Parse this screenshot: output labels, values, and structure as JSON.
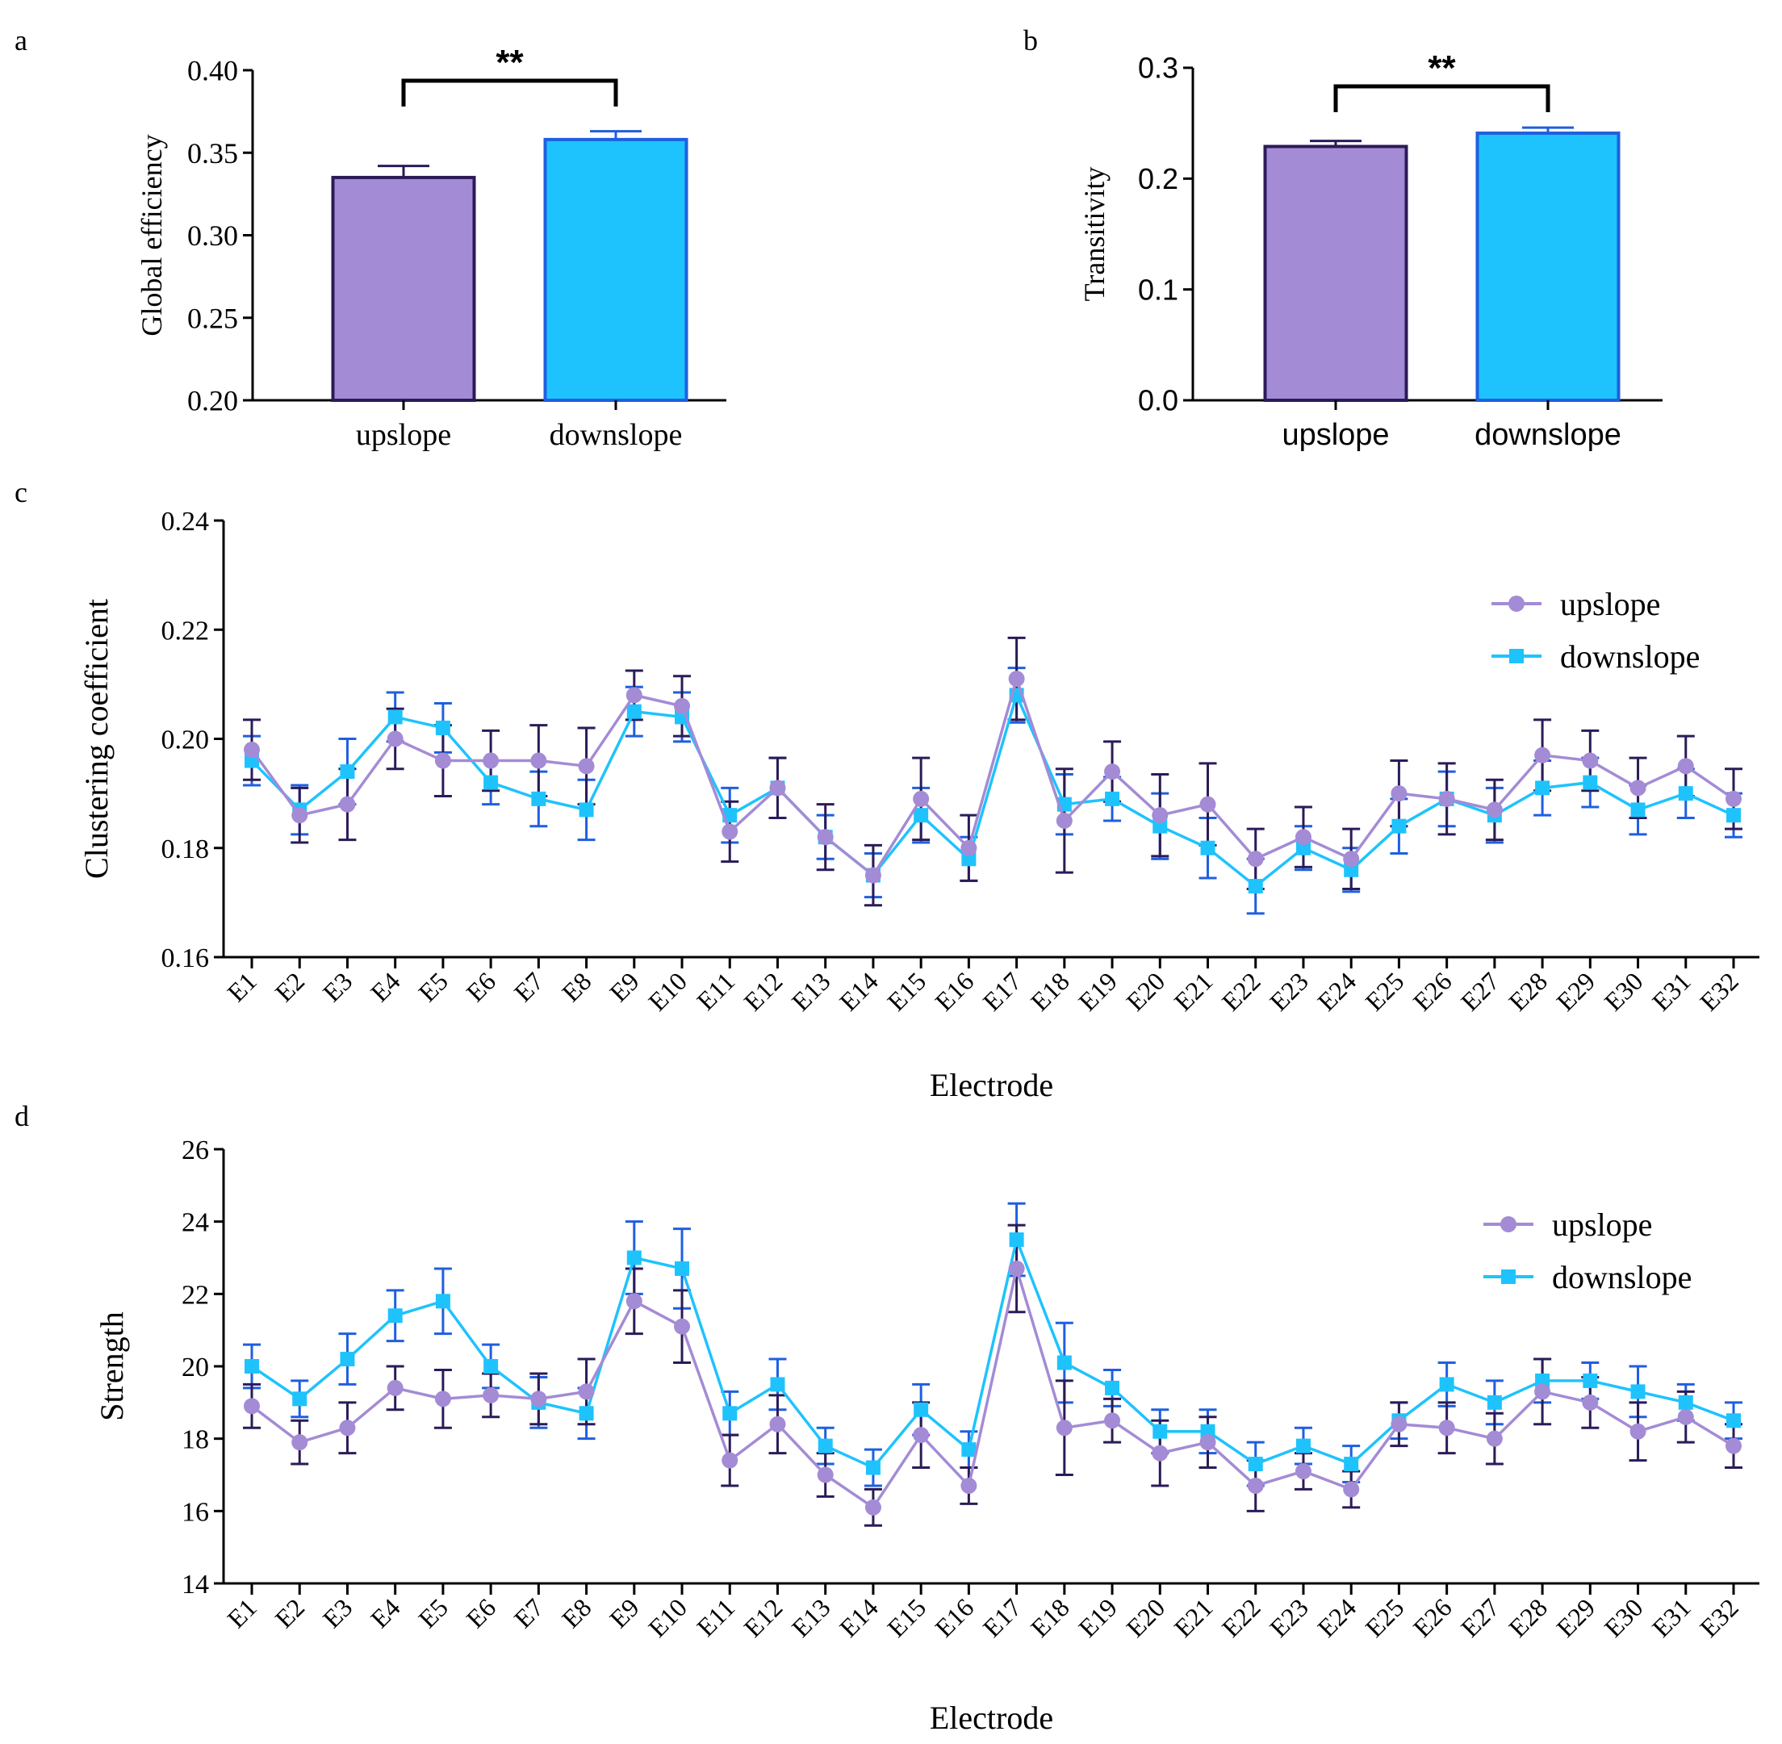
{
  "colors": {
    "upslope_fill": "#A48BD5",
    "upslope_edge": "#2B1B57",
    "downslope_fill": "#1EC3FD",
    "downslope_edge": "#1F5FE0",
    "axis": "#000000"
  },
  "chart_data": [
    {
      "panel": "a",
      "type": "bar",
      "title": "",
      "categories": [
        "upslope",
        "downslope"
      ],
      "values": [
        0.335,
        0.358
      ],
      "errors": [
        0.007,
        0.005
      ],
      "xlabel": "",
      "ylabel": "Global efficiency",
      "ylim": [
        0.2,
        0.4
      ],
      "yticks": [
        "0.20",
        "0.25",
        "0.30",
        "0.35",
        "0.40"
      ],
      "ytick_values": [
        0.2,
        0.25,
        0.3,
        0.35,
        0.4
      ],
      "significance": "**"
    },
    {
      "panel": "b",
      "type": "bar",
      "title": "",
      "categories": [
        "upslope",
        "downslope"
      ],
      "values": [
        0.229,
        0.241
      ],
      "errors": [
        0.005,
        0.005
      ],
      "xlabel": "",
      "ylabel": "Transitivity",
      "ylim": [
        0.0,
        0.3
      ],
      "yticks": [
        "0.0",
        "0.1",
        "0.2",
        "0.3"
      ],
      "ytick_values": [
        0.0,
        0.1,
        0.2,
        0.3
      ],
      "significance": "**"
    },
    {
      "panel": "c",
      "type": "line",
      "title": "",
      "xlabel": "Electrode",
      "ylabel": "Clustering coefficient",
      "ylim": [
        0.16,
        0.24
      ],
      "yticks": [
        "0.16",
        "0.18",
        "0.20",
        "0.22",
        "0.24"
      ],
      "ytick_values": [
        0.16,
        0.18,
        0.2,
        0.22,
        0.24
      ],
      "legend_position": "top-right",
      "categories": [
        "E1",
        "E2",
        "E3",
        "E4",
        "E5",
        "E6",
        "E7",
        "E8",
        "E9",
        "E10",
        "E11",
        "E12",
        "E13",
        "E14",
        "E15",
        "E16",
        "E17",
        "E18",
        "E19",
        "E20",
        "E21",
        "E22",
        "E23",
        "E24",
        "E25",
        "E26",
        "E27",
        "E28",
        "E29",
        "E30",
        "E31",
        "E32"
      ],
      "series": [
        {
          "name": "upslope",
          "values": [
            0.198,
            0.186,
            0.188,
            0.2,
            0.196,
            0.196,
            0.196,
            0.195,
            0.208,
            0.206,
            0.183,
            0.191,
            0.182,
            0.175,
            0.189,
            0.18,
            0.211,
            0.185,
            0.194,
            0.186,
            0.188,
            0.178,
            0.182,
            0.178,
            0.19,
            0.189,
            0.187,
            0.197,
            0.196,
            0.191,
            0.195,
            0.189
          ],
          "errors": [
            0.0055,
            0.005,
            0.0065,
            0.0055,
            0.0065,
            0.0055,
            0.0065,
            0.007,
            0.0045,
            0.0055,
            0.0055,
            0.0055,
            0.006,
            0.0055,
            0.0075,
            0.006,
            0.0075,
            0.0095,
            0.0055,
            0.0075,
            0.0075,
            0.0055,
            0.0055,
            0.0055,
            0.006,
            0.0065,
            0.0055,
            0.0065,
            0.0055,
            0.0055,
            0.0055,
            0.0055
          ]
        },
        {
          "name": "downslope",
          "values": [
            0.196,
            0.187,
            0.194,
            0.204,
            0.202,
            0.192,
            0.189,
            0.187,
            0.205,
            0.204,
            0.186,
            0.191,
            0.182,
            0.175,
            0.186,
            0.178,
            0.208,
            0.188,
            0.189,
            0.184,
            0.18,
            0.173,
            0.18,
            0.176,
            0.184,
            0.189,
            0.186,
            0.191,
            0.192,
            0.187,
            0.19,
            0.186
          ],
          "errors": [
            0.0045,
            0.0045,
            0.006,
            0.0045,
            0.0045,
            0.004,
            0.005,
            0.0055,
            0.0045,
            0.0045,
            0.005,
            0.0055,
            0.004,
            0.004,
            0.005,
            0.004,
            0.005,
            0.0055,
            0.004,
            0.006,
            0.0055,
            0.005,
            0.004,
            0.004,
            0.005,
            0.005,
            0.005,
            0.005,
            0.0045,
            0.0045,
            0.0045,
            0.004
          ]
        }
      ]
    },
    {
      "panel": "d",
      "type": "line",
      "title": "",
      "xlabel": "Electrode",
      "ylabel": "Strength",
      "ylim": [
        14,
        26
      ],
      "yticks": [
        "14",
        "16",
        "18",
        "20",
        "22",
        "24",
        "26"
      ],
      "ytick_values": [
        14,
        16,
        18,
        20,
        22,
        24,
        26
      ],
      "legend_position": "top-right",
      "categories": [
        "E1",
        "E2",
        "E3",
        "E4",
        "E5",
        "E6",
        "E7",
        "E8",
        "E9",
        "E10",
        "E11",
        "E12",
        "E13",
        "E14",
        "E15",
        "E16",
        "E17",
        "E18",
        "E19",
        "E20",
        "E21",
        "E22",
        "E23",
        "E24",
        "E25",
        "E26",
        "E27",
        "E28",
        "E29",
        "E30",
        "E31",
        "E32"
      ],
      "series": [
        {
          "name": "upslope",
          "values": [
            18.9,
            17.9,
            18.3,
            19.4,
            19.1,
            19.2,
            19.1,
            19.3,
            21.8,
            21.1,
            17.4,
            18.4,
            17.0,
            16.1,
            18.1,
            16.7,
            22.7,
            18.3,
            18.5,
            17.6,
            17.9,
            16.7,
            17.1,
            16.6,
            18.4,
            18.3,
            18.0,
            19.3,
            19.0,
            18.2,
            18.6,
            17.8
          ],
          "errors": [
            0.6,
            0.6,
            0.7,
            0.6,
            0.8,
            0.6,
            0.7,
            0.9,
            0.9,
            1.0,
            0.7,
            0.8,
            0.6,
            0.5,
            0.9,
            0.5,
            1.2,
            1.3,
            0.6,
            0.9,
            0.7,
            0.7,
            0.5,
            0.5,
            0.6,
            0.7,
            0.7,
            0.9,
            0.7,
            0.8,
            0.7,
            0.6
          ]
        },
        {
          "name": "downslope",
          "values": [
            20.0,
            19.1,
            20.2,
            21.4,
            21.8,
            20.0,
            19.0,
            18.7,
            23.0,
            22.7,
            18.7,
            19.5,
            17.8,
            17.2,
            18.8,
            17.7,
            23.5,
            20.1,
            19.4,
            18.2,
            18.2,
            17.3,
            17.8,
            17.3,
            18.5,
            19.5,
            19.0,
            19.6,
            19.6,
            19.3,
            19.0,
            18.5
          ],
          "errors": [
            0.6,
            0.5,
            0.7,
            0.7,
            0.9,
            0.6,
            0.7,
            0.7,
            1.0,
            1.1,
            0.6,
            0.7,
            0.5,
            0.5,
            0.7,
            0.5,
            1.0,
            1.1,
            0.5,
            0.6,
            0.6,
            0.6,
            0.5,
            0.5,
            0.5,
            0.6,
            0.6,
            0.6,
            0.5,
            0.7,
            0.5,
            0.5
          ]
        }
      ]
    }
  ]
}
